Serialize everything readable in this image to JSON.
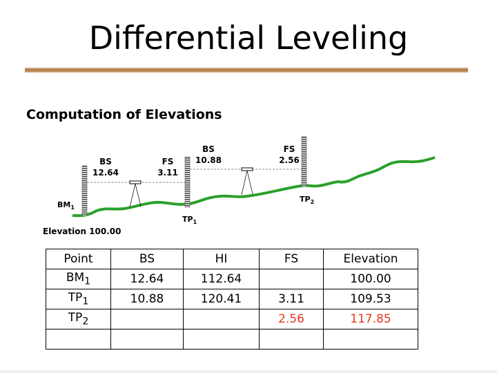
{
  "title": "Differential Leveling",
  "subtitle": "Computation of Elevations",
  "diagram": {
    "bs1_label": "BS",
    "bs1_value": "12.64",
    "fs1_label": "FS",
    "fs1_value": "3.11",
    "bs2_label": "BS",
    "bs2_value": "10.88",
    "fs2_label": "FS",
    "fs2_value": "2.56",
    "bm": "BM",
    "bm_sub": "1",
    "tp1": "TP",
    "tp1_sub": "1",
    "tp2": "TP",
    "tp2_sub": "2",
    "elevation": "Elevation 100.00",
    "ground_color": "#2aa02a"
  },
  "table": {
    "headers": [
      "Point",
      "BS",
      "HI",
      "FS",
      "Elevation"
    ],
    "rows": [
      {
        "point": "BM",
        "sub": "1",
        "bs": "12.64",
        "hi": "112.64",
        "fs": "",
        "elev": "100.00"
      },
      {
        "point": "TP",
        "sub": "1",
        "bs": "10.88",
        "hi": "120.41",
        "fs": "3.11",
        "elev": "109.53"
      },
      {
        "point": "TP",
        "sub": "2",
        "bs": "",
        "hi": "",
        "fs": "2.56",
        "elev": "117.85"
      },
      {
        "point": "",
        "sub": "",
        "bs": "",
        "hi": "",
        "fs": "",
        "elev": ""
      }
    ],
    "highlight_color": "#e8351f"
  }
}
